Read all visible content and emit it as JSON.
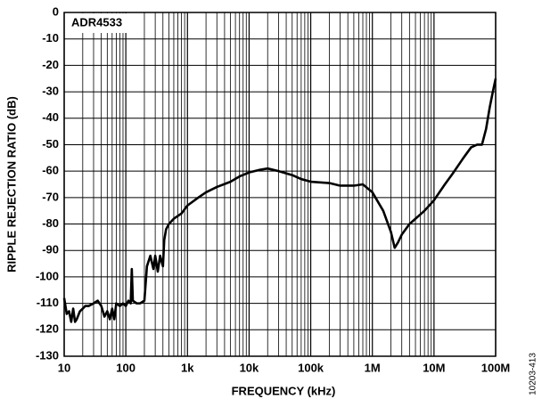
{
  "chart_data": {
    "type": "line",
    "annotation": "ADR4533",
    "figure_id": "10203-413",
    "x_label": "FREQUENCY (kHz)",
    "y_label": "RIPPLE REJECTION RATIO (dB)",
    "xscale": "log",
    "grid": true,
    "xlim": [
      10,
      100000000
    ],
    "ylim": [
      -130,
      0
    ],
    "xticks": [
      10,
      100,
      {
        "value": 1000,
        "label": "1k"
      },
      {
        "value": 10000,
        "label": "10k"
      },
      {
        "value": 100000,
        "label": "100k"
      },
      {
        "value": 1000000,
        "label": "1M"
      },
      {
        "value": 10000000,
        "label": "10M"
      },
      {
        "value": 100000000,
        "label": "100M"
      }
    ],
    "xminorticks": [
      20,
      30,
      40,
      50,
      60,
      70,
      80,
      90,
      200,
      300,
      400,
      500,
      600,
      700,
      800,
      900,
      2000,
      3000,
      4000,
      5000,
      6000,
      7000,
      8000,
      9000,
      20000,
      30000,
      40000,
      50000,
      60000,
      70000,
      80000,
      90000,
      200000,
      300000,
      400000,
      500000,
      600000,
      700000,
      800000,
      900000,
      2000000,
      3000000,
      4000000,
      5000000,
      6000000,
      7000000,
      8000000,
      9000000
    ],
    "yticks": [
      -130,
      -120,
      -110,
      -100,
      -90,
      -80,
      -70,
      -60,
      -50,
      -40,
      -30,
      -20,
      -10,
      0
    ],
    "series": [
      {
        "color": "#000000",
        "x": [
          10,
          11,
          12,
          13,
          14,
          15,
          16,
          18,
          20,
          22,
          25,
          30,
          35,
          40,
          45,
          50,
          55,
          60,
          65,
          70,
          80,
          90,
          100,
          110,
          120,
          125,
          130,
          150,
          170,
          200,
          220,
          250,
          280,
          300,
          330,
          360,
          400,
          420,
          450,
          500,
          600,
          800,
          1000,
          1500,
          2000,
          3000,
          5000,
          7000,
          10000,
          15000,
          20000,
          30000,
          50000,
          70000,
          100000,
          200000,
          300000,
          500000,
          700000,
          1000000,
          1500000,
          2000000,
          2300000,
          2600000,
          3000000,
          4000000,
          5000000,
          7000000,
          10000000,
          15000000,
          20000000,
          30000000,
          40000000,
          50000000,
          60000000,
          70000000,
          80000000,
          90000000,
          100000000
        ],
        "values": [
          -108,
          -114,
          -113,
          -117,
          -112,
          -117,
          -116,
          -113,
          -112,
          -111,
          -111,
          -110,
          -109,
          -111,
          -115,
          -113,
          -116,
          -112,
          -116,
          -110,
          -111,
          -110,
          -111,
          -109,
          -110,
          -97,
          -109,
          -110,
          -110,
          -109,
          -96,
          -92,
          -97,
          -92,
          -98,
          -92,
          -96,
          -86,
          -82,
          -80,
          -78,
          -76,
          -73,
          -70,
          -68,
          -66,
          -64,
          -62,
          -60.5,
          -59.5,
          -59,
          -60,
          -61.5,
          -63,
          -64,
          -64.5,
          -65.5,
          -65.5,
          -65,
          -68,
          -75,
          -83,
          -89,
          -87,
          -84,
          -80,
          -78,
          -75,
          -71,
          -65,
          -61,
          -55,
          -51,
          -50,
          -50,
          -44,
          -36,
          -30,
          -25
        ]
      }
    ]
  }
}
